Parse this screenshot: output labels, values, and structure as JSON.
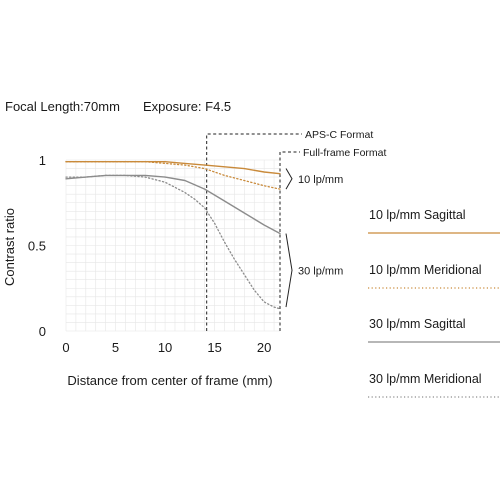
{
  "chart_data": {
    "type": "line",
    "header": {
      "focal_length": "Focal Length:70mm",
      "exposure": "Exposure: F4.5"
    },
    "xlabel": "Distance from center of frame (mm)",
    "ylabel": "Contrast ratio",
    "xlim": [
      0,
      21.6
    ],
    "ylim": [
      0,
      1
    ],
    "x_ticks": [
      0,
      5,
      10,
      15,
      20
    ],
    "x_tick_labels": [
      "0",
      "5",
      "10",
      "15",
      "20"
    ],
    "y_ticks": [
      0,
      0.5,
      1
    ],
    "y_tick_labels": [
      "0",
      "0.5",
      "1"
    ],
    "grid": true,
    "x_grid_step": 1,
    "y_grid_step": 0.05,
    "format_lines": [
      {
        "label": "APS-C Format",
        "x": 14.2
      },
      {
        "label": "Full-frame Format",
        "x": 21.6
      }
    ],
    "group_labels": [
      {
        "label": "10 lp/mm",
        "y_range": [
          0.83,
          0.95
        ]
      },
      {
        "label": "30 lp/mm",
        "y_range": [
          0.14,
          0.57
        ]
      }
    ],
    "series": [
      {
        "name": "10 lp/mm Sagittal",
        "color": "#c98a3a",
        "style": "solid",
        "x": [
          0,
          2,
          4,
          6,
          8,
          10,
          12,
          14,
          16,
          18,
          20,
          21.6
        ],
        "y": [
          0.99,
          0.99,
          0.99,
          0.99,
          0.99,
          0.99,
          0.98,
          0.97,
          0.96,
          0.95,
          0.93,
          0.92
        ]
      },
      {
        "name": "10 lp/mm Meridional",
        "color": "#c98a3a",
        "style": "dotted",
        "x": [
          0,
          2,
          4,
          6,
          8,
          10,
          12,
          14,
          16,
          18,
          20,
          21.6
        ],
        "y": [
          0.99,
          0.99,
          0.99,
          0.99,
          0.99,
          0.98,
          0.97,
          0.95,
          0.91,
          0.88,
          0.85,
          0.83
        ]
      },
      {
        "name": "30 lp/mm Sagittal",
        "color": "#8c8c8c",
        "style": "solid",
        "x": [
          0,
          2,
          4,
          6,
          8,
          10,
          12,
          14,
          16,
          18,
          20,
          21.6
        ],
        "y": [
          0.89,
          0.9,
          0.91,
          0.91,
          0.91,
          0.9,
          0.88,
          0.83,
          0.76,
          0.69,
          0.62,
          0.57
        ]
      },
      {
        "name": "30 lp/mm Meridional",
        "color": "#8c8c8c",
        "style": "dotted",
        "x": [
          0,
          2,
          4,
          6,
          8,
          10,
          12,
          13,
          14,
          15,
          16,
          17,
          18,
          19,
          20,
          21,
          21.6
        ],
        "y": [
          0.9,
          0.9,
          0.91,
          0.91,
          0.9,
          0.87,
          0.81,
          0.77,
          0.72,
          0.63,
          0.52,
          0.42,
          0.33,
          0.24,
          0.17,
          0.14,
          0.13
        ]
      }
    ]
  }
}
